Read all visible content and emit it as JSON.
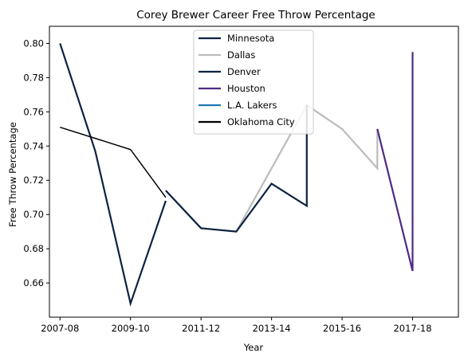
{
  "chart_data": {
    "type": "line",
    "title": "Corey Brewer Career Free Throw Percentage",
    "xlabel": "Year",
    "ylabel": "Free Throw Percentage",
    "x_ticks": [
      "2007-08",
      "2009-10",
      "2011-12",
      "2013-14",
      "2015-16",
      "2017-18"
    ],
    "xlim": [
      2006.7,
      2018.3
    ],
    "ylim": [
      0.64,
      0.81
    ],
    "y_ticks": [
      0.66,
      0.68,
      0.7,
      0.72,
      0.74,
      0.76,
      0.78,
      0.8
    ],
    "grid": false,
    "legend_position": "top-center",
    "series": [
      {
        "name": "Minnesota",
        "color": "#0c2340",
        "points": [
          [
            2007,
            0.8
          ],
          [
            2008,
            0.737
          ],
          [
            2009,
            0.648
          ],
          [
            2010,
            0.708
          ]
        ]
      },
      {
        "name": "Dallas",
        "color": "#bbbbbb",
        "points": [
          [
            2010,
            0.714
          ],
          [
            2011,
            0.692
          ],
          [
            2012,
            0.69
          ],
          [
            2014,
            0.764
          ],
          [
            2015,
            0.75
          ],
          [
            2016,
            0.727
          ],
          [
            2016,
            0.75
          ]
        ]
      },
      {
        "name": "Denver",
        "color": "#0d2240",
        "points": [
          [
            2010,
            0.714
          ],
          [
            2011,
            0.692
          ],
          [
            2012,
            0.69
          ],
          [
            2013,
            0.718
          ],
          [
            2014,
            0.705
          ],
          [
            2014,
            0.764
          ]
        ]
      },
      {
        "name": "Houston",
        "color": "#4e2a84",
        "points": [
          [
            2016,
            0.75
          ],
          [
            2017,
            0.667
          ],
          [
            2017,
            0.795
          ]
        ]
      },
      {
        "name": "L.A. Lakers",
        "color": "#1f77b4",
        "points": []
      },
      {
        "name": "Oklahoma City",
        "color": "#000000",
        "points": [
          [
            2007,
            0.751
          ],
          [
            2009,
            0.738
          ],
          [
            2010,
            0.71
          ]
        ]
      }
    ]
  }
}
